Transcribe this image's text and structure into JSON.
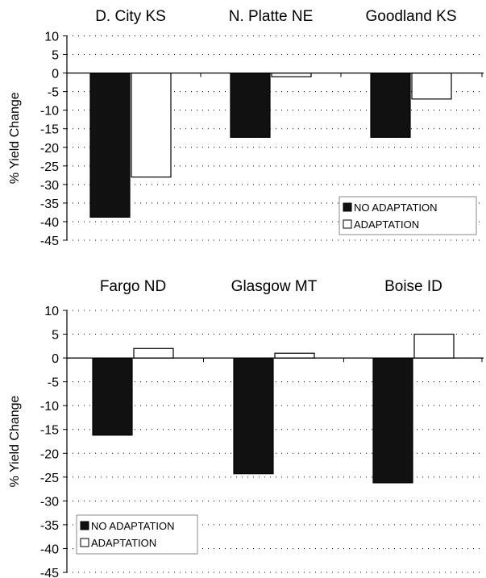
{
  "chart_data": [
    {
      "type": "bar",
      "categories": [
        "D. City KS",
        "N. Platte NE",
        "Goodland KS"
      ],
      "series": [
        {
          "name": "NO ADAPTATION",
          "values": [
            -38.8,
            -17.3,
            -17.3
          ]
        },
        {
          "name": "ADAPTATION",
          "values": [
            -28.0,
            -1.0,
            -7.0
          ]
        }
      ],
      "ylabel": "% Yield Change",
      "ylim": [
        -45,
        10
      ],
      "yticks": [
        10,
        5,
        0,
        -5,
        -10,
        -15,
        -20,
        -25,
        -30,
        -35,
        -40,
        -45
      ],
      "grid": "dotted-horizontal",
      "legend": "bottom-right"
    },
    {
      "type": "bar",
      "categories": [
        "Fargo ND",
        "Glasgow MT",
        "Boise ID"
      ],
      "series": [
        {
          "name": "NO ADAPTATION",
          "values": [
            -16.2,
            -24.3,
            -26.2
          ]
        },
        {
          "name": "ADAPTATION",
          "values": [
            2.0,
            1.0,
            5.0
          ]
        }
      ],
      "ylabel": "% Yield Change",
      "ylim": [
        -45,
        10
      ],
      "yticks": [
        10,
        5,
        0,
        -5,
        -10,
        -15,
        -20,
        -25,
        -30,
        -35,
        -40,
        -45
      ],
      "grid": "dotted-horizontal",
      "legend": "bottom-left"
    }
  ],
  "colors": {
    "no_adaptation": "#111111",
    "adaptation": "#ffffff",
    "axis": "#000000"
  }
}
